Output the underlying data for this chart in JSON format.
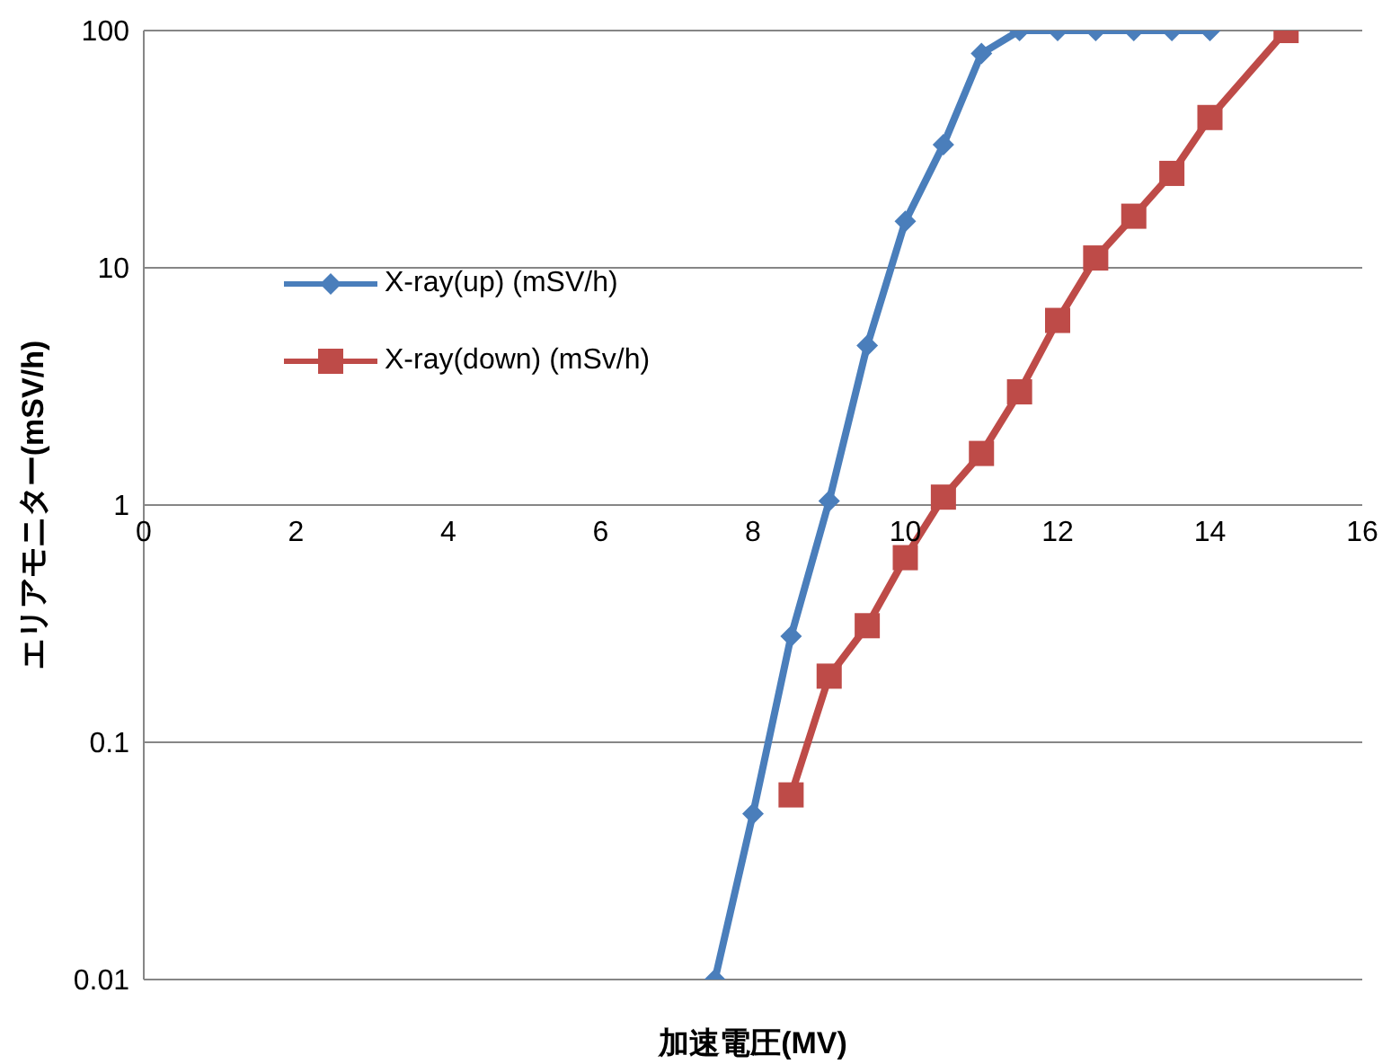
{
  "chart_data": {
    "type": "line",
    "xlabel": "加速電圧(MV)",
    "ylabel": "エリアモニター(mSV/h)",
    "log": "y",
    "grid": "y",
    "legend": "left",
    "line_style": "solid",
    "xlim": [
      0,
      16
    ],
    "xticks": [
      0,
      2,
      4,
      6,
      8,
      10,
      12,
      14,
      16
    ],
    "ylim": [
      0.01,
      100
    ],
    "yticks": [
      0.01,
      0.1,
      1,
      10,
      100
    ],
    "series": [
      {
        "name": "X-ray(up) (mSV/h)",
        "color": "#4a7ebb",
        "marker": "diamond",
        "x": [
          7.5,
          8,
          8.5,
          9,
          9.5,
          10,
          10.5,
          11,
          11.5,
          12,
          12.5,
          13,
          13.5,
          14
        ],
        "values": [
          0.01,
          0.05,
          0.28,
          1.04,
          4.7,
          15.7,
          33,
          80,
          100,
          100,
          100,
          100,
          100,
          100
        ]
      },
      {
        "name": "X-ray(down) (mSv/h)",
        "color": "#be4b48",
        "marker": "square",
        "x": [
          8.5,
          9,
          9.5,
          10,
          10.5,
          11,
          11.5,
          12,
          12.5,
          13,
          13.5,
          14,
          15
        ],
        "values": [
          0.06,
          0.19,
          0.31,
          0.6,
          1.08,
          1.65,
          3.0,
          6.0,
          11,
          16.5,
          25,
          43,
          100
        ]
      }
    ]
  }
}
